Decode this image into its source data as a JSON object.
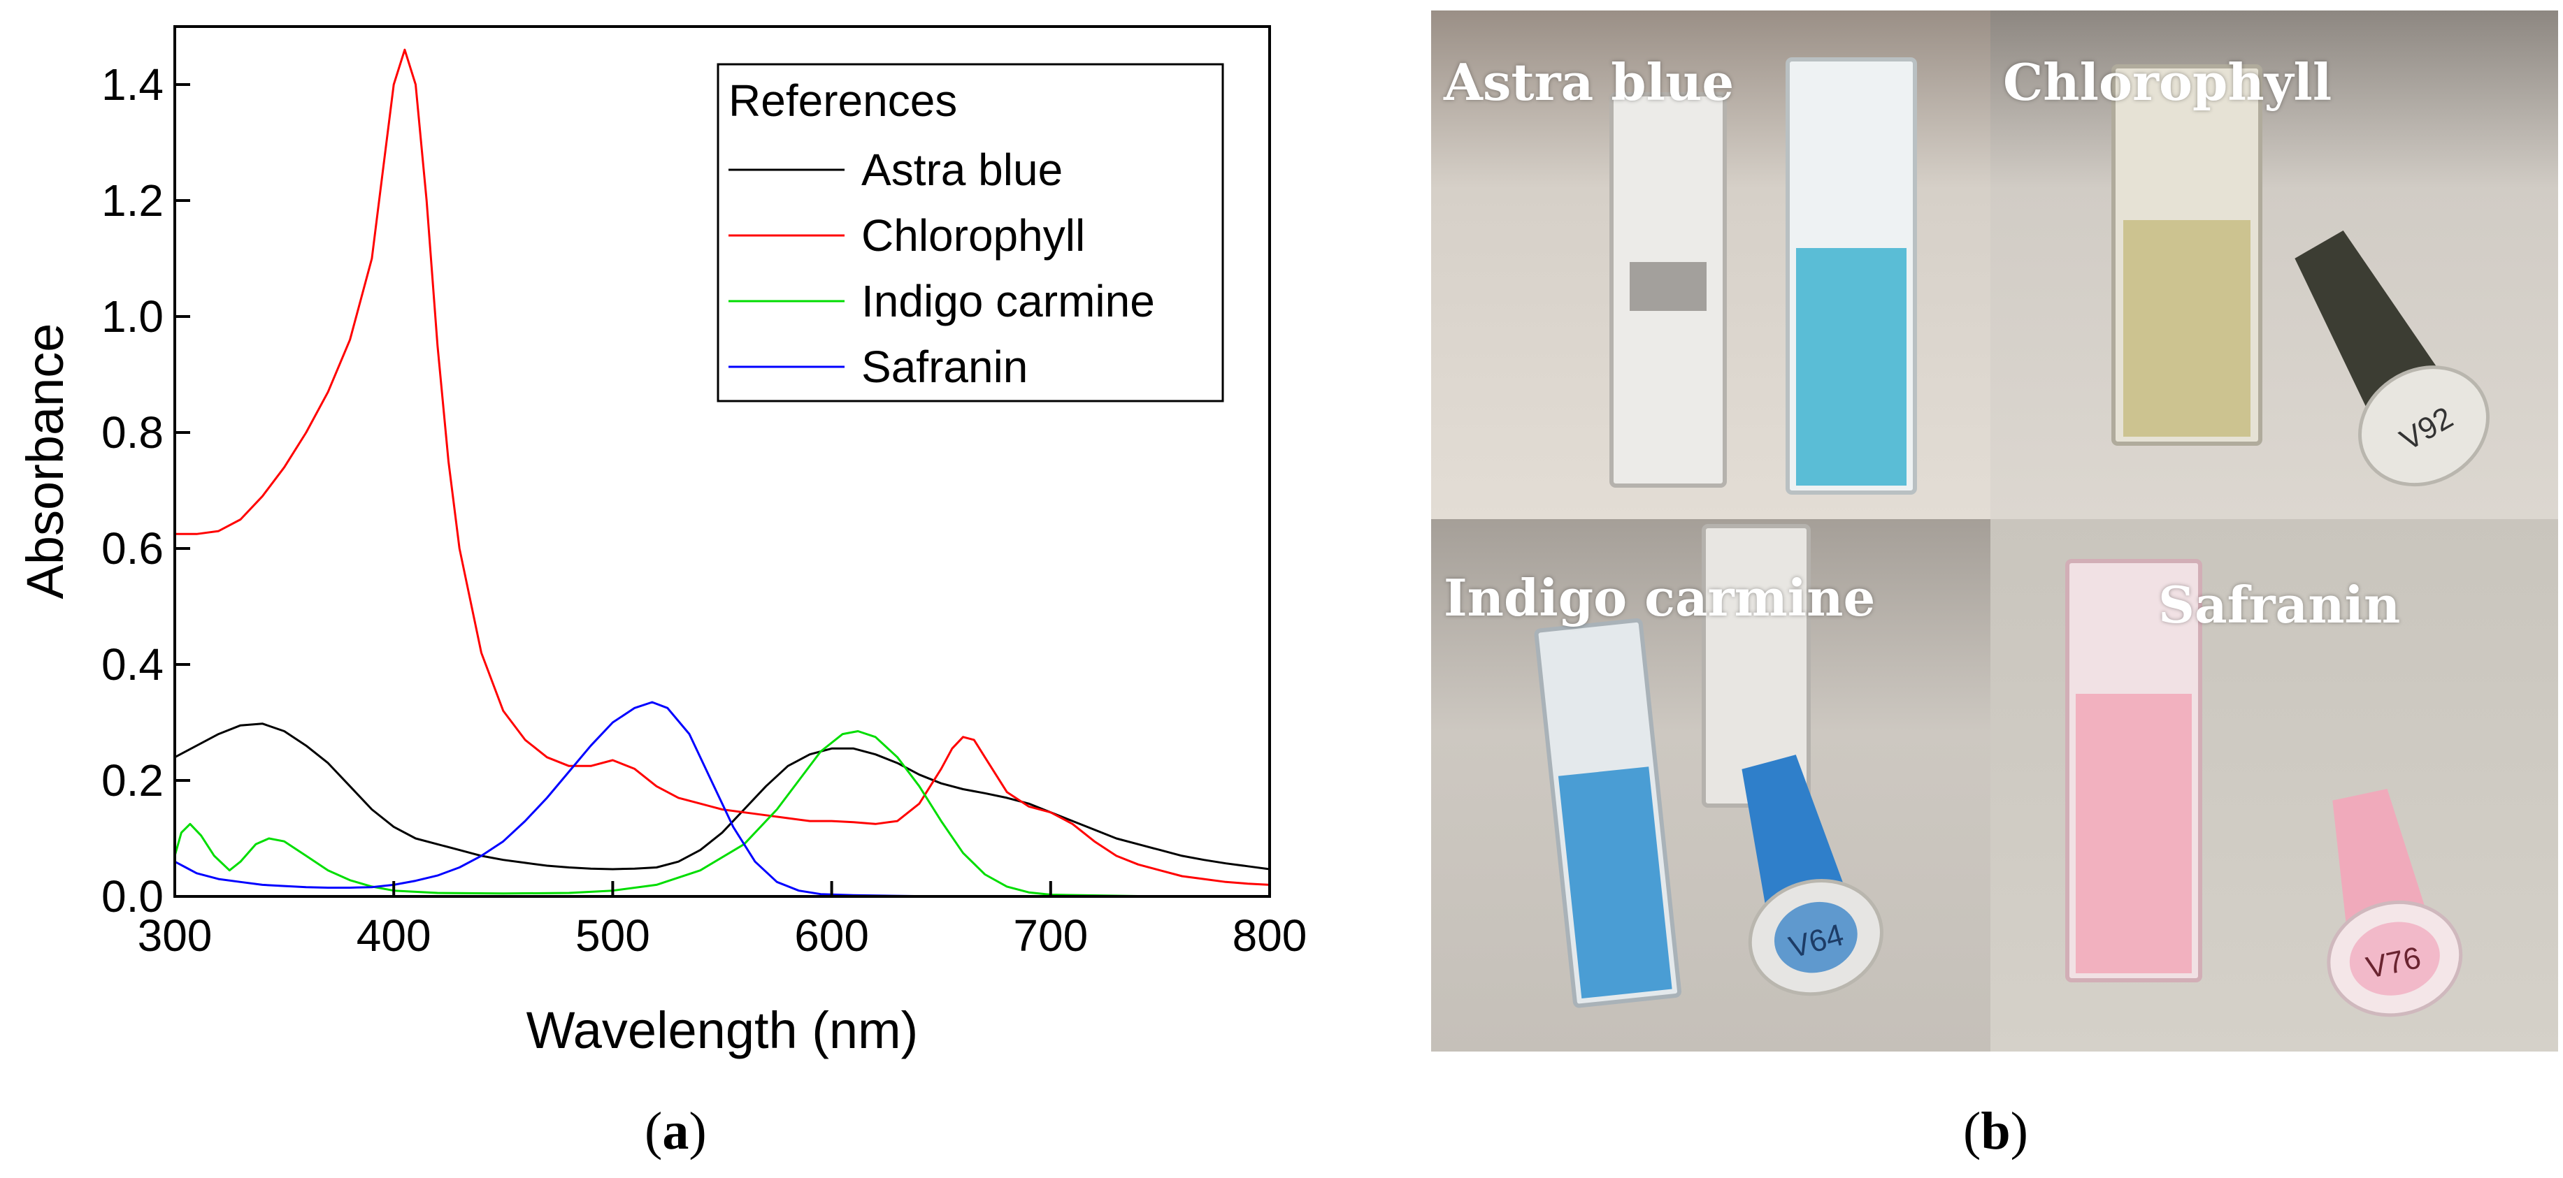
{
  "chart_data": {
    "type": "line",
    "xlabel": "Wavelength (nm)",
    "ylabel": "Absorbance",
    "xlim": [
      300,
      800
    ],
    "ylim": [
      0,
      1.5
    ],
    "xticks": [
      300,
      400,
      500,
      600,
      700,
      800
    ],
    "yticks": [
      0.0,
      0.2,
      0.4,
      0.6,
      0.8,
      1.0,
      1.2,
      1.4
    ],
    "ytick_labels": [
      "0.0",
      "0.2",
      "0.4",
      "0.6",
      "0.8",
      "1.0",
      "1.2",
      "1.4"
    ],
    "grid": false,
    "legend": {
      "title": "References",
      "position": "top-right"
    },
    "series": [
      {
        "name": "Astra blue",
        "color": "#000000",
        "points": [
          [
            300,
            0.24
          ],
          [
            310,
            0.26
          ],
          [
            320,
            0.28
          ],
          [
            330,
            0.295
          ],
          [
            340,
            0.298
          ],
          [
            350,
            0.285
          ],
          [
            360,
            0.26
          ],
          [
            370,
            0.23
          ],
          [
            380,
            0.19
          ],
          [
            390,
            0.15
          ],
          [
            400,
            0.12
          ],
          [
            410,
            0.1
          ],
          [
            420,
            0.09
          ],
          [
            430,
            0.08
          ],
          [
            440,
            0.07
          ],
          [
            450,
            0.063
          ],
          [
            460,
            0.058
          ],
          [
            470,
            0.053
          ],
          [
            480,
            0.05
          ],
          [
            490,
            0.048
          ],
          [
            500,
            0.047
          ],
          [
            510,
            0.048
          ],
          [
            520,
            0.05
          ],
          [
            530,
            0.06
          ],
          [
            540,
            0.08
          ],
          [
            550,
            0.11
          ],
          [
            560,
            0.15
          ],
          [
            570,
            0.19
          ],
          [
            580,
            0.225
          ],
          [
            590,
            0.245
          ],
          [
            600,
            0.255
          ],
          [
            610,
            0.255
          ],
          [
            620,
            0.245
          ],
          [
            630,
            0.23
          ],
          [
            640,
            0.21
          ],
          [
            650,
            0.195
          ],
          [
            660,
            0.185
          ],
          [
            670,
            0.178
          ],
          [
            680,
            0.17
          ],
          [
            690,
            0.16
          ],
          [
            700,
            0.145
          ],
          [
            710,
            0.13
          ],
          [
            720,
            0.115
          ],
          [
            730,
            0.1
          ],
          [
            740,
            0.09
          ],
          [
            750,
            0.08
          ],
          [
            760,
            0.07
          ],
          [
            770,
            0.063
          ],
          [
            780,
            0.057
          ],
          [
            790,
            0.052
          ],
          [
            800,
            0.047
          ]
        ]
      },
      {
        "name": "Chlorophyll",
        "color": "#ff0000",
        "points": [
          [
            300,
            0.625
          ],
          [
            310,
            0.625
          ],
          [
            320,
            0.63
          ],
          [
            330,
            0.65
          ],
          [
            340,
            0.69
          ],
          [
            350,
            0.74
          ],
          [
            360,
            0.8
          ],
          [
            370,
            0.87
          ],
          [
            380,
            0.96
          ],
          [
            390,
            1.1
          ],
          [
            395,
            1.25
          ],
          [
            400,
            1.4
          ],
          [
            405,
            1.46
          ],
          [
            410,
            1.4
          ],
          [
            415,
            1.2
          ],
          [
            420,
            0.95
          ],
          [
            425,
            0.75
          ],
          [
            430,
            0.6
          ],
          [
            440,
            0.42
          ],
          [
            450,
            0.32
          ],
          [
            460,
            0.27
          ],
          [
            470,
            0.24
          ],
          [
            480,
            0.225
          ],
          [
            490,
            0.225
          ],
          [
            500,
            0.235
          ],
          [
            510,
            0.22
          ],
          [
            520,
            0.19
          ],
          [
            530,
            0.17
          ],
          [
            540,
            0.16
          ],
          [
            550,
            0.15
          ],
          [
            560,
            0.145
          ],
          [
            570,
            0.14
          ],
          [
            580,
            0.135
          ],
          [
            590,
            0.13
          ],
          [
            600,
            0.13
          ],
          [
            610,
            0.128
          ],
          [
            620,
            0.125
          ],
          [
            630,
            0.13
          ],
          [
            640,
            0.16
          ],
          [
            650,
            0.22
          ],
          [
            655,
            0.255
          ],
          [
            660,
            0.275
          ],
          [
            665,
            0.27
          ],
          [
            670,
            0.24
          ],
          [
            680,
            0.18
          ],
          [
            690,
            0.155
          ],
          [
            700,
            0.145
          ],
          [
            710,
            0.125
          ],
          [
            720,
            0.095
          ],
          [
            730,
            0.07
          ],
          [
            740,
            0.055
          ],
          [
            750,
            0.045
          ],
          [
            760,
            0.035
          ],
          [
            770,
            0.03
          ],
          [
            780,
            0.025
          ],
          [
            790,
            0.022
          ],
          [
            800,
            0.02
          ]
        ]
      },
      {
        "name": "Indigo carmine",
        "color": "#00dd00",
        "points": [
          [
            300,
            0.07
          ],
          [
            303,
            0.11
          ],
          [
            307,
            0.125
          ],
          [
            312,
            0.105
          ],
          [
            318,
            0.07
          ],
          [
            325,
            0.045
          ],
          [
            330,
            0.06
          ],
          [
            337,
            0.09
          ],
          [
            343,
            0.1
          ],
          [
            350,
            0.095
          ],
          [
            360,
            0.07
          ],
          [
            370,
            0.045
          ],
          [
            380,
            0.028
          ],
          [
            390,
            0.017
          ],
          [
            400,
            0.01
          ],
          [
            420,
            0.006
          ],
          [
            450,
            0.005
          ],
          [
            480,
            0.006
          ],
          [
            500,
            0.01
          ],
          [
            520,
            0.02
          ],
          [
            540,
            0.045
          ],
          [
            560,
            0.09
          ],
          [
            575,
            0.15
          ],
          [
            585,
            0.2
          ],
          [
            595,
            0.25
          ],
          [
            605,
            0.28
          ],
          [
            612,
            0.285
          ],
          [
            620,
            0.275
          ],
          [
            630,
            0.24
          ],
          [
            640,
            0.19
          ],
          [
            650,
            0.13
          ],
          [
            660,
            0.075
          ],
          [
            670,
            0.038
          ],
          [
            680,
            0.017
          ],
          [
            690,
            0.007
          ],
          [
            700,
            0.003
          ],
          [
            750,
            0.0
          ],
          [
            800,
            0.0
          ]
        ]
      },
      {
        "name": "Safranin",
        "color": "#0000ff",
        "points": [
          [
            300,
            0.06
          ],
          [
            305,
            0.05
          ],
          [
            310,
            0.04
          ],
          [
            320,
            0.03
          ],
          [
            330,
            0.025
          ],
          [
            340,
            0.02
          ],
          [
            350,
            0.018
          ],
          [
            360,
            0.016
          ],
          [
            370,
            0.015
          ],
          [
            380,
            0.015
          ],
          [
            390,
            0.016
          ],
          [
            400,
            0.02
          ],
          [
            410,
            0.027
          ],
          [
            420,
            0.036
          ],
          [
            430,
            0.05
          ],
          [
            440,
            0.07
          ],
          [
            450,
            0.095
          ],
          [
            460,
            0.13
          ],
          [
            470,
            0.17
          ],
          [
            480,
            0.215
          ],
          [
            490,
            0.26
          ],
          [
            500,
            0.3
          ],
          [
            510,
            0.325
          ],
          [
            518,
            0.335
          ],
          [
            525,
            0.325
          ],
          [
            535,
            0.28
          ],
          [
            545,
            0.2
          ],
          [
            555,
            0.12
          ],
          [
            565,
            0.06
          ],
          [
            575,
            0.025
          ],
          [
            585,
            0.01
          ],
          [
            595,
            0.004
          ],
          [
            610,
            0.002
          ],
          [
            650,
            0.0
          ],
          [
            800,
            0.0
          ]
        ]
      }
    ]
  },
  "captions": {
    "left": "a",
    "right": "b"
  },
  "photos": [
    {
      "label": "Astra blue",
      "liquid_color": "#3fb4d0"
    },
    {
      "label": "Chlorophyll",
      "liquid_color": "#c9c088"
    },
    {
      "label": "Indigo carmine",
      "liquid_color": "#2f8fd0"
    },
    {
      "label": "Safranin",
      "liquid_color": "#f2a8b8"
    }
  ],
  "tube_labels": {
    "chlorophyll": "V92",
    "indigo": "V64",
    "safranin": "V76"
  }
}
